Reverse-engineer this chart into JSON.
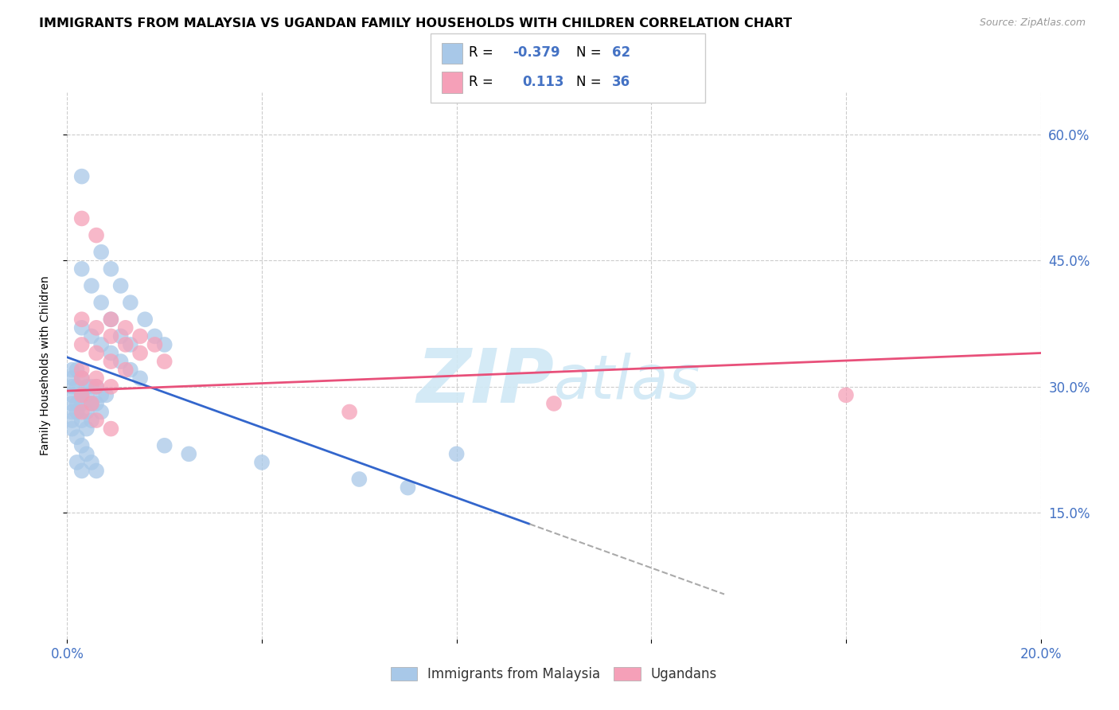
{
  "title": "IMMIGRANTS FROM MALAYSIA VS UGANDAN FAMILY HOUSEHOLDS WITH CHILDREN CORRELATION CHART",
  "source": "Source: ZipAtlas.com",
  "ylabel": "Family Households with Children",
  "legend_label1": "Immigrants from Malaysia",
  "legend_label2": "Ugandans",
  "xlim": [
    0.0,
    0.2
  ],
  "ylim": [
    0.0,
    0.65
  ],
  "malaysia_color": "#a8c8e8",
  "ugandan_color": "#f5a0b8",
  "malaysia_line_color": "#3366cc",
  "ugandan_line_color": "#e8507a",
  "watermark_color": "#d0e8f5",
  "malaysia_scatter": {
    "x": [
      0.003,
      0.007,
      0.009,
      0.011,
      0.013,
      0.016,
      0.018,
      0.02,
      0.003,
      0.005,
      0.007,
      0.009,
      0.011,
      0.013,
      0.003,
      0.005,
      0.007,
      0.009,
      0.011,
      0.013,
      0.015,
      0.002,
      0.003,
      0.004,
      0.005,
      0.006,
      0.007,
      0.008,
      0.002,
      0.003,
      0.004,
      0.005,
      0.006,
      0.007,
      0.002,
      0.003,
      0.004,
      0.005,
      0.002,
      0.003,
      0.004,
      0.002,
      0.003,
      0.004,
      0.005,
      0.006,
      0.002,
      0.003,
      0.001,
      0.001,
      0.001,
      0.001,
      0.001,
      0.001,
      0.001,
      0.001,
      0.02,
      0.025,
      0.04,
      0.06,
      0.07,
      0.08
    ],
    "y": [
      0.55,
      0.46,
      0.44,
      0.42,
      0.4,
      0.38,
      0.36,
      0.35,
      0.44,
      0.42,
      0.4,
      0.38,
      0.36,
      0.35,
      0.37,
      0.36,
      0.35,
      0.34,
      0.33,
      0.32,
      0.31,
      0.32,
      0.31,
      0.3,
      0.3,
      0.3,
      0.29,
      0.29,
      0.3,
      0.29,
      0.29,
      0.28,
      0.28,
      0.27,
      0.28,
      0.28,
      0.27,
      0.26,
      0.27,
      0.26,
      0.25,
      0.24,
      0.23,
      0.22,
      0.21,
      0.2,
      0.21,
      0.2,
      0.32,
      0.31,
      0.3,
      0.29,
      0.28,
      0.27,
      0.26,
      0.25,
      0.23,
      0.22,
      0.21,
      0.19,
      0.18,
      0.22
    ]
  },
  "ugandan_scatter": {
    "x": [
      0.003,
      0.006,
      0.009,
      0.012,
      0.015,
      0.018,
      0.02,
      0.003,
      0.006,
      0.009,
      0.012,
      0.015,
      0.003,
      0.006,
      0.009,
      0.012,
      0.003,
      0.006,
      0.009,
      0.003,
      0.006,
      0.003,
      0.005,
      0.003,
      0.006,
      0.009,
      0.058,
      0.1,
      0.16
    ],
    "y": [
      0.5,
      0.48,
      0.38,
      0.37,
      0.36,
      0.35,
      0.33,
      0.38,
      0.37,
      0.36,
      0.35,
      0.34,
      0.35,
      0.34,
      0.33,
      0.32,
      0.32,
      0.31,
      0.3,
      0.31,
      0.3,
      0.29,
      0.28,
      0.27,
      0.26,
      0.25,
      0.27,
      0.28,
      0.29
    ]
  },
  "malaysia_line": {
    "x0": 0.0,
    "y0": 0.335,
    "x1": 0.115,
    "y1": 0.095
  },
  "malaysia_line_solid_end": 0.095,
  "malaysia_line_dashed_end": 0.135,
  "ugandan_line": {
    "x0": 0.0,
    "y0": 0.295,
    "x1": 0.2,
    "y1": 0.34
  }
}
